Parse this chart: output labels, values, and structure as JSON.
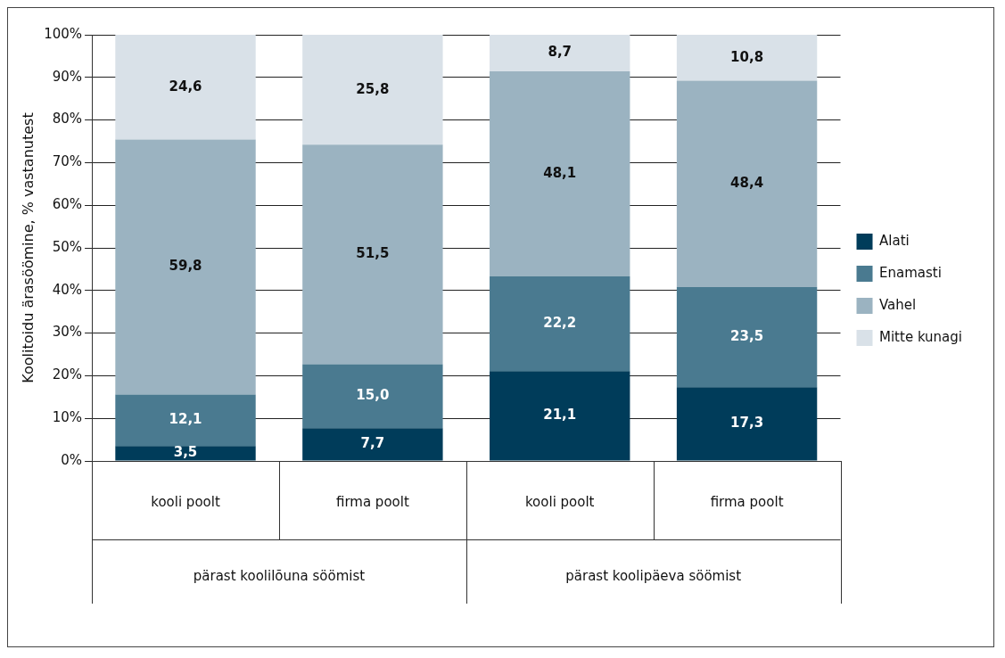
{
  "chart_data": {
    "type": "bar",
    "stacked": true,
    "ylabel": "Koolitoidu ärasöömine, % vastanutest",
    "categories": [
      "kooli poolt",
      "firma poolt",
      "kooli poolt",
      "firma poolt"
    ],
    "annotations": [
      "pärast koolilõuna söömist",
      "pärast koolipäeva söömist"
    ],
    "series": [
      {
        "name": "Alati",
        "color": "#003c5a",
        "values": [
          3.5,
          7.7,
          21.1,
          17.3
        ],
        "value_labels": [
          "3,5",
          "7,7",
          "21,1",
          "17,3"
        ]
      },
      {
        "name": "Enamasti",
        "color": "#4a7a90",
        "values": [
          12.1,
          15.0,
          22.2,
          23.5
        ],
        "value_labels": [
          "12,1",
          "15,0",
          "22,2",
          "23,5"
        ]
      },
      {
        "name": "Vahel",
        "color": "#9bb3c1",
        "values": [
          59.8,
          51.5,
          48.1,
          48.4
        ],
        "value_labels": [
          "59,8",
          "51,5",
          "48,1",
          "48,4"
        ]
      },
      {
        "name": "Mitte kunagi",
        "color": "#d9e1e8",
        "values": [
          24.6,
          25.8,
          8.7,
          10.8
        ],
        "value_labels": [
          "24,6",
          "25,8",
          "8,7",
          "10,8"
        ]
      }
    ],
    "ylim": [
      0,
      100
    ],
    "yticks": [
      {
        "value": 0,
        "label": "0%"
      },
      {
        "value": 10,
        "label": "10%"
      },
      {
        "value": 20,
        "label": "20%"
      },
      {
        "value": 30,
        "label": "30%"
      },
      {
        "value": 40,
        "label": "40%"
      },
      {
        "value": 50,
        "label": "50%"
      },
      {
        "value": 60,
        "label": "60%"
      },
      {
        "value": 70,
        "label": "70%"
      },
      {
        "value": 80,
        "label": "80%"
      },
      {
        "value": 90,
        "label": "90%"
      },
      {
        "value": 100,
        "label": "100%"
      }
    ],
    "grid": "y",
    "legend": "right"
  }
}
